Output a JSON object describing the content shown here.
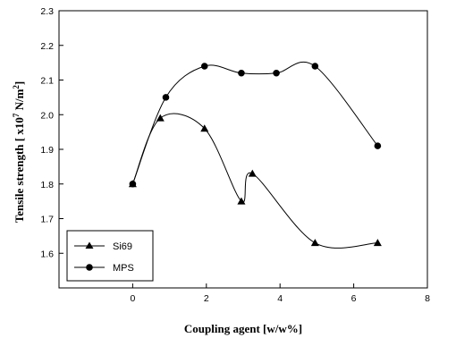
{
  "chart_data": {
    "type": "line",
    "xlabel": "Coupling agent [w/w%]",
    "ylabel_main": "Tensile strength [ x10",
    "ylabel_exp": "7",
    "ylabel_unit": " N/m",
    "ylabel_unit_exp": "2",
    "ylabel_close": "]",
    "xlim": [
      -2,
      8
    ],
    "ylim": [
      1.5,
      2.3
    ],
    "x_ticks": [
      0,
      2,
      4,
      6,
      8
    ],
    "x_tick_labels": [
      "0",
      "2",
      "4",
      "6",
      "8"
    ],
    "y_ticks": [
      1.6,
      1.7,
      1.8,
      1.9,
      2.0,
      2.1,
      2.2,
      2.3
    ],
    "y_tick_labels": [
      "1.6",
      "1.7",
      "1.8",
      "1.9",
      "2.0",
      "2.1",
      "2.2",
      "2.3"
    ],
    "grid": false,
    "legend_position": "bottom-left",
    "series": [
      {
        "name": "Si69",
        "marker": "triangle",
        "x": [
          0,
          0.75,
          1.95,
          2.95,
          3.25,
          4.95,
          6.65
        ],
        "y": [
          1.8,
          1.99,
          1.96,
          1.75,
          1.83,
          1.63,
          1.63
        ]
      },
      {
        "name": "MPS",
        "marker": "circle",
        "x": [
          0,
          0.9,
          1.95,
          2.95,
          3.9,
          4.95,
          6.65
        ],
        "y": [
          1.8,
          2.05,
          2.14,
          2.12,
          2.12,
          2.14,
          1.91
        ]
      }
    ]
  }
}
